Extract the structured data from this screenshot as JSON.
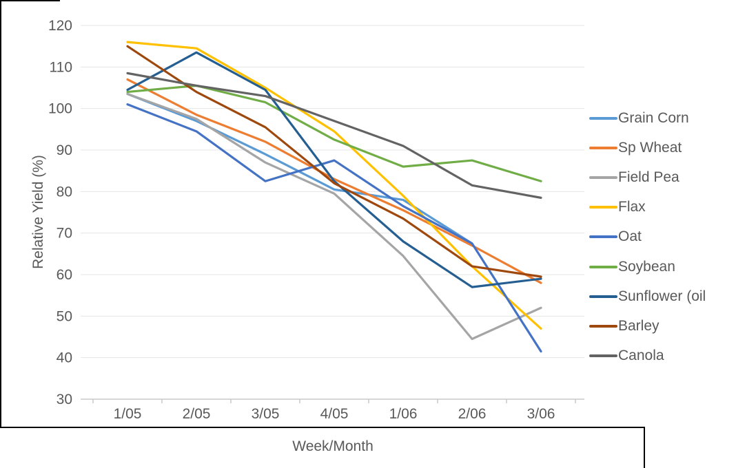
{
  "chart_data": {
    "type": "line",
    "title": "",
    "xlabel": "Week/Month",
    "ylabel": "Relative Yield (%)",
    "categories": [
      "1/05",
      "2/05",
      "3/05",
      "4/05",
      "1/06",
      "2/06",
      "3/06"
    ],
    "series": [
      {
        "name": "Grain Corn",
        "color": "#5B9BD5",
        "values": [
          103.5,
          97,
          89,
          80.5,
          78,
          67.5,
          null
        ]
      },
      {
        "name": "Sp Wheat",
        "color": "#ED7D31",
        "values": [
          107,
          98.5,
          92,
          83,
          75.5,
          67,
          58
        ]
      },
      {
        "name": "Field Pea",
        "color": "#A5A5A5",
        "values": [
          103.5,
          97.5,
          87,
          79.5,
          64.5,
          44.5,
          52
        ]
      },
      {
        "name": "Flax",
        "color": "#FFC000",
        "values": [
          116,
          114.5,
          105,
          94.5,
          79,
          62,
          47
        ]
      },
      {
        "name": "Oat",
        "color": "#4472C4",
        "values": [
          101,
          94.5,
          82.5,
          87.5,
          76.5,
          67.5,
          41.5
        ]
      },
      {
        "name": "Soybean",
        "color": "#70AD47",
        "values": [
          104,
          105.5,
          101.5,
          92.5,
          86,
          87.5,
          82.5
        ]
      },
      {
        "name": "Sunflower (oil",
        "color": "#255E91",
        "values": [
          104.5,
          113.5,
          104.5,
          82.5,
          68,
          57,
          59
        ]
      },
      {
        "name": "Barley",
        "color": "#9E480E",
        "values": [
          115,
          104,
          95.5,
          82,
          73.5,
          62,
          59.5
        ]
      },
      {
        "name": "Canola",
        "color": "#636363",
        "values": [
          108.5,
          105.5,
          103,
          97,
          91,
          81.5,
          78.5
        ]
      }
    ],
    "ylim": [
      30,
      120
    ],
    "y_tick_step": 10,
    "grid": true,
    "legend_position": "right"
  },
  "colors": {
    "background": "#FFFFFF",
    "gridline": "#E4E4E4",
    "axis_line": "#C9C9C9",
    "axis_text": "#595959",
    "border_fragment": "#000000"
  }
}
